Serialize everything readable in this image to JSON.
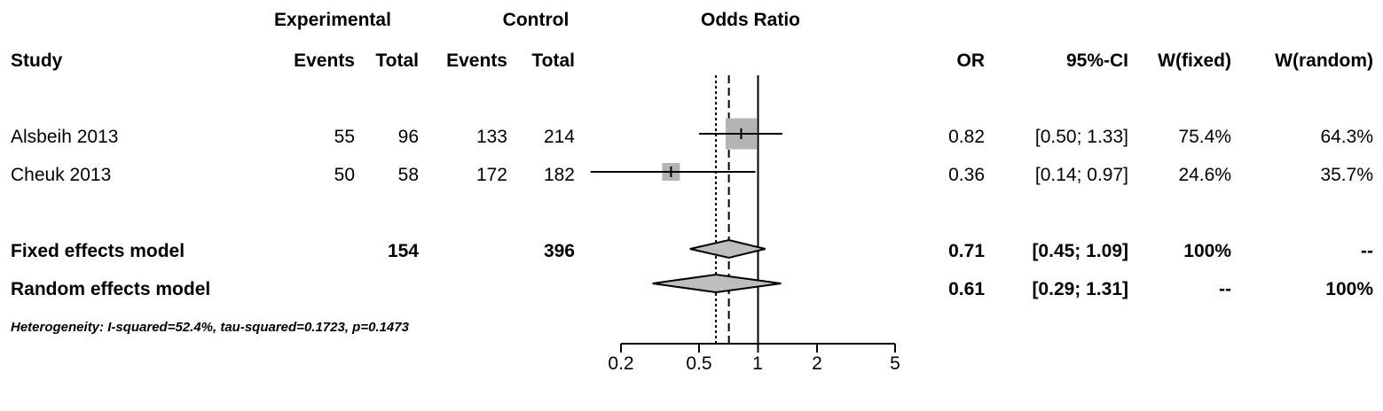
{
  "chart_data": {
    "type": "forest",
    "title": "Odds Ratio",
    "scale": "log",
    "xlim": [
      0.2,
      5
    ],
    "ticks": [
      0.2,
      0.5,
      1,
      2,
      5
    ],
    "tick_labels": [
      "0.2",
      "0.5",
      "1",
      "2",
      "5"
    ],
    "reference_line": 1,
    "headers": {
      "experimental": "Experimental",
      "control": "Control",
      "study": "Study",
      "events": "Events",
      "total": "Total",
      "or": "OR",
      "ci": "95%-CI",
      "wfixed": "W(fixed)",
      "wrandom": "W(random)"
    },
    "studies": [
      {
        "name": "Alsbeih 2013",
        "exp_events": "55",
        "exp_total": "96",
        "ctrl_events": "133",
        "ctrl_total": "214",
        "or": 0.82,
        "lower": 0.5,
        "upper": 1.33,
        "or_text": "0.82",
        "ci_text": "[0.50; 1.33]",
        "wfixed": "75.4%",
        "wrandom": "64.3%",
        "weight": 75.4
      },
      {
        "name": "Cheuk 2013",
        "exp_events": "50",
        "exp_total": "58",
        "ctrl_events": "172",
        "ctrl_total": "182",
        "or": 0.36,
        "lower": 0.14,
        "upper": 0.97,
        "or_text": "0.36",
        "ci_text": "[0.14; 0.97]",
        "wfixed": "24.6%",
        "wrandom": "35.7%",
        "weight": 24.6
      }
    ],
    "fixed": {
      "name": "Fixed effects model",
      "exp_total": "154",
      "ctrl_total": "396",
      "or": 0.71,
      "lower": 0.45,
      "upper": 1.09,
      "or_text": "0.71",
      "ci_text": "[0.45; 1.09]",
      "wfixed": "100%",
      "wrandom": "--"
    },
    "random": {
      "name": "Random effects model",
      "or": 0.61,
      "lower": 0.29,
      "upper": 1.31,
      "or_text": "0.61",
      "ci_text": "[0.29; 1.31]",
      "wfixed": "--",
      "wrandom": "100%"
    },
    "heterogeneity": "Heterogeneity: I-squared=52.4%, tau-squared=0.1723, p=0.1473",
    "colors": {
      "box": "#b4b4b4",
      "diamond": "#bebebe",
      "line": "#000000"
    }
  }
}
